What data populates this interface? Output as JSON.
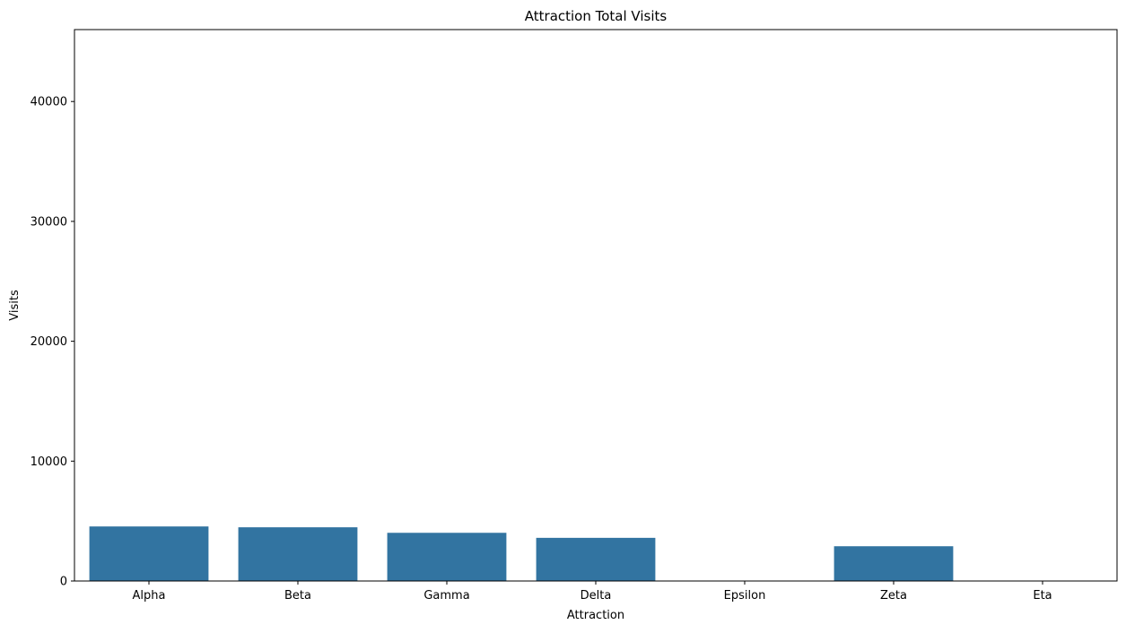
{
  "chart_data": {
    "type": "bar",
    "title": "Attraction Total Visits",
    "xlabel": "Attraction",
    "ylabel": "Visits",
    "categories": [
      "Alpha",
      "Beta",
      "Gamma",
      "Delta",
      "Epsilon",
      "Zeta",
      "Eta"
    ],
    "values": [
      4550,
      4480,
      4020,
      3600,
      0,
      2900,
      0
    ],
    "ylim": [
      0,
      46000
    ],
    "yticks": [
      0,
      10000,
      20000,
      30000,
      40000
    ],
    "ytick_labels": [
      "0",
      "10000",
      "20000",
      "30000",
      "40000"
    ],
    "grid": false,
    "legend": "none",
    "colors": {
      "bar": "#3274a1",
      "axis": "#000000",
      "background": "#ffffff"
    }
  }
}
